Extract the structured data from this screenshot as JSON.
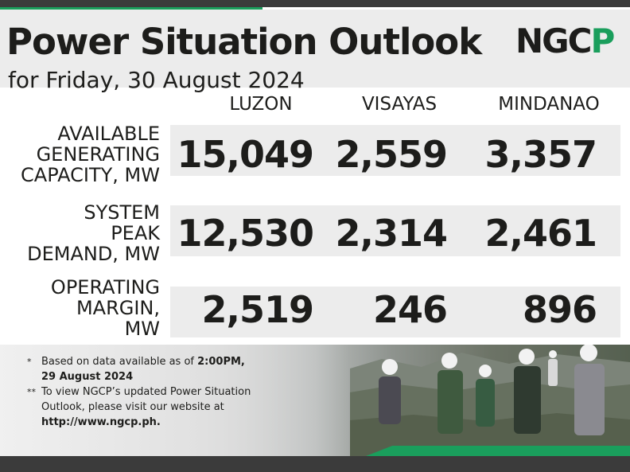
{
  "header": {
    "title": "Power Situation Outlook",
    "subtitle": "for Friday, 30 August 2024",
    "logo_part1": "NGC",
    "logo_part2": "P"
  },
  "columns": [
    "LUZON",
    "VISAYAS",
    "MINDANAO"
  ],
  "rows": [
    {
      "label": "AVAILABLE\nGENERATING\nCAPACITY, MW",
      "values": [
        "15,049",
        "2,559",
        "3,357"
      ]
    },
    {
      "label": "SYSTEM\nPEAK\nDEMAND, MW",
      "values": [
        "12,530",
        "2,314",
        "2,461"
      ]
    },
    {
      "label": "OPERATING\nMARGIN,\nMW",
      "values": [
        "2,519",
        "246",
        "896"
      ]
    }
  ],
  "notes": [
    {
      "mark": "*",
      "text_prefix": "Based on data available as of ",
      "text_bold": "2:00PM,",
      "text_line2_bold": "29 August 2024"
    },
    {
      "mark": "**",
      "text_prefix": "To view NGCP’s updated Power Situation",
      "text_line2": "Outlook, please visit our website at",
      "text_line3_bold": "http://www.ngcp.ph."
    }
  ],
  "colors": {
    "accent_green": "#1a9e5c",
    "dark_bar": "#3b3b3b",
    "band_gray": "#ececec"
  }
}
